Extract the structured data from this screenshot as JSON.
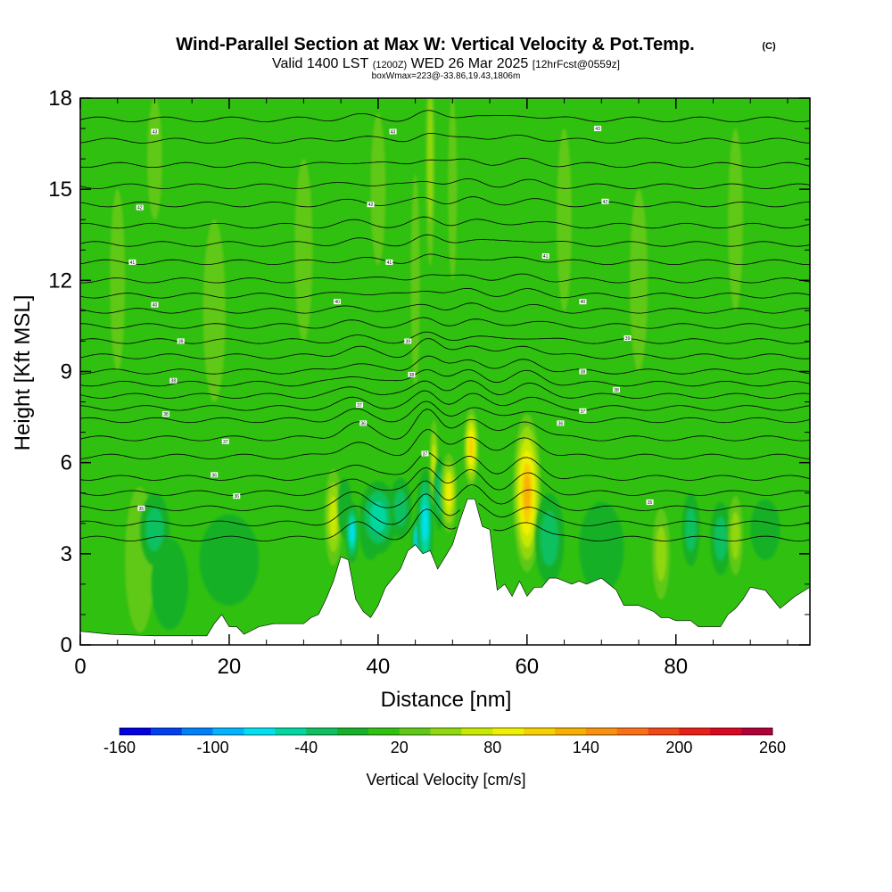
{
  "chart_data": {
    "type": "heatmap",
    "title": "Wind-Parallel Section at Max W: Vertical Velocity & Pot.Temp.",
    "title_mark": "(C)",
    "subtitle": {
      "a": "Valid 1400 LST",
      "b": "(1200Z)",
      "c": "WED 26 Mar 2025",
      "d": "[12hrFcst@0559z]"
    },
    "subtitle2": "boxWmax=223@-33.86,19.43,1806m",
    "xlabel": "Distance [nm]",
    "ylabel": "Height [Kft MSL]",
    "xlim": [
      0,
      98
    ],
    "ylim": [
      0,
      18
    ],
    "xticks": [
      0,
      20,
      40,
      60,
      80
    ],
    "yticks": [
      0,
      3,
      6,
      9,
      12,
      15,
      18
    ],
    "colorbar": {
      "label": "Vertical Velocity [cm/s]",
      "tick_labels": [
        -160,
        -100,
        -40,
        20,
        80,
        140,
        200,
        260
      ],
      "boundaries": [
        -160,
        -140,
        -120,
        -100,
        -80,
        -60,
        -40,
        -20,
        0,
        20,
        40,
        60,
        80,
        100,
        120,
        140,
        160,
        180,
        200,
        220,
        240,
        260
      ],
      "colors": [
        "#0000e0",
        "#0040f0",
        "#0080f8",
        "#00b4ff",
        "#00e0f0",
        "#00d8a0",
        "#10c060",
        "#18b028",
        "#30c010",
        "#60c818",
        "#90d810",
        "#c8e800",
        "#f0f000",
        "#f8d000",
        "#f8b000",
        "#f89010",
        "#f87018",
        "#f04818",
        "#e82018",
        "#d80820",
        "#b00038"
      ]
    },
    "background_w": 15,
    "terrain_kft": [
      [
        0,
        0.45
      ],
      [
        4,
        0.35
      ],
      [
        10,
        0.3
      ],
      [
        17,
        0.3
      ],
      [
        18,
        0.7
      ],
      [
        19,
        1.0
      ],
      [
        20,
        0.6
      ],
      [
        21,
        0.6
      ],
      [
        22,
        0.35
      ],
      [
        24,
        0.6
      ],
      [
        26,
        0.7
      ],
      [
        30,
        0.7
      ],
      [
        31,
        0.9
      ],
      [
        32,
        1.0
      ],
      [
        33,
        1.5
      ],
      [
        34,
        2.1
      ],
      [
        35,
        2.9
      ],
      [
        36,
        2.8
      ],
      [
        37,
        1.5
      ],
      [
        38,
        1.1
      ],
      [
        39,
        0.9
      ],
      [
        40,
        1.3
      ],
      [
        41,
        1.9
      ],
      [
        42,
        2.2
      ],
      [
        43,
        2.5
      ],
      [
        44,
        3.1
      ],
      [
        45,
        3.3
      ],
      [
        46,
        3.0
      ],
      [
        47,
        3.1
      ],
      [
        48,
        2.5
      ],
      [
        49,
        2.9
      ],
      [
        50,
        3.3
      ],
      [
        51,
        4.1
      ],
      [
        52,
        4.8
      ],
      [
        53,
        4.8
      ],
      [
        54,
        3.9
      ],
      [
        55,
        3.8
      ],
      [
        56,
        1.8
      ],
      [
        57,
        2.0
      ],
      [
        58,
        1.6
      ],
      [
        59,
        2.1
      ],
      [
        60,
        1.6
      ],
      [
        61,
        1.9
      ],
      [
        62,
        1.9
      ],
      [
        63,
        2.2
      ],
      [
        64,
        2.2
      ],
      [
        65,
        2.1
      ],
      [
        66,
        2.0
      ],
      [
        67,
        2.1
      ],
      [
        68,
        2.0
      ],
      [
        69,
        2.1
      ],
      [
        70,
        2.2
      ],
      [
        71,
        2.0
      ],
      [
        72,
        1.8
      ],
      [
        73,
        1.3
      ],
      [
        74,
        1.3
      ],
      [
        75,
        1.3
      ],
      [
        76,
        1.2
      ],
      [
        77,
        1.1
      ],
      [
        78,
        0.9
      ],
      [
        79,
        0.9
      ],
      [
        80,
        0.8
      ],
      [
        82,
        0.8
      ],
      [
        83,
        0.6
      ],
      [
        86,
        0.6
      ],
      [
        87,
        1.0
      ],
      [
        88,
        1.2
      ],
      [
        89,
        1.5
      ],
      [
        90,
        1.9
      ],
      [
        92,
        1.8
      ],
      [
        94,
        1.2
      ],
      [
        96,
        1.6
      ],
      [
        98,
        1.9
      ]
    ],
    "w_cells": [
      {
        "x": 8,
        "z": 2.8,
        "w": 85,
        "dx": 1.2,
        "dz": 1.6
      },
      {
        "x": 8,
        "z": 2.8,
        "w": 40,
        "dx": 2.0,
        "dz": 2.4
      },
      {
        "x": 10,
        "z": 3.8,
        "w": -30,
        "dx": 2.0,
        "dz": 1.2
      },
      {
        "x": 12,
        "z": 2.0,
        "w": -15,
        "dx": 2.5,
        "dz": 1.5
      },
      {
        "x": 20,
        "z": 2.8,
        "w": -10,
        "dx": 4.0,
        "dz": 1.5
      },
      {
        "x": 34,
        "z": 4.2,
        "w": 80,
        "dx": 1.2,
        "dz": 1.6
      },
      {
        "x": 35.5,
        "z": 4.5,
        "w": -20,
        "dx": 1.0,
        "dz": 1.0
      },
      {
        "x": 36.5,
        "z": 3.7,
        "w": -80,
        "dx": 0.9,
        "dz": 1.0
      },
      {
        "x": 39,
        "z": 3.8,
        "w": -40,
        "dx": 1.5,
        "dz": 1.0
      },
      {
        "x": 40,
        "z": 4.2,
        "w": -50,
        "dx": 2.5,
        "dz": 1.2
      },
      {
        "x": 43,
        "z": 4.5,
        "w": -35,
        "dx": 1.5,
        "dz": 1.0
      },
      {
        "x": 45.5,
        "z": 3.5,
        "w": -120,
        "dx": 1.0,
        "dz": 0.8
      },
      {
        "x": 46.3,
        "z": 4.0,
        "w": -70,
        "dx": 1.1,
        "dz": 1.8
      },
      {
        "x": 47.5,
        "z": 6.0,
        "w": 70,
        "dx": 0.6,
        "dz": 1.4
      },
      {
        "x": 48.2,
        "z": 5.0,
        "w": -35,
        "dx": 0.8,
        "dz": 1.2
      },
      {
        "x": 49.5,
        "z": 5.0,
        "w": 95,
        "dx": 1.1,
        "dz": 1.3
      },
      {
        "x": 52.5,
        "z": 6.5,
        "w": 110,
        "dx": 1.0,
        "dz": 1.3
      },
      {
        "x": 60,
        "z": 5.0,
        "w": 220,
        "dx": 1.0,
        "dz": 1.6
      },
      {
        "x": 60,
        "z": 5.0,
        "w": 140,
        "dx": 1.9,
        "dz": 2.6
      },
      {
        "x": 63,
        "z": 3.5,
        "w": -25,
        "dx": 2.0,
        "dz": 1.5
      },
      {
        "x": 70,
        "z": 3.2,
        "w": -20,
        "dx": 3.0,
        "dz": 1.5
      },
      {
        "x": 78,
        "z": 3.0,
        "w": 60,
        "dx": 1.2,
        "dz": 1.5
      },
      {
        "x": 82,
        "z": 3.8,
        "w": -35,
        "dx": 1.2,
        "dz": 1.2
      },
      {
        "x": 86,
        "z": 3.5,
        "w": -30,
        "dx": 1.4,
        "dz": 1.2
      },
      {
        "x": 88,
        "z": 3.6,
        "w": 55,
        "dx": 1.0,
        "dz": 1.3
      },
      {
        "x": 92,
        "z": 3.8,
        "w": -20,
        "dx": 2.0,
        "dz": 1.0
      },
      {
        "x": 47,
        "z": 16.0,
        "w": 50,
        "dx": 0.6,
        "dz": 3.5
      },
      {
        "x": 45,
        "z": 12.0,
        "w": 40,
        "dx": 0.6,
        "dz": 3.5
      },
      {
        "x": 50,
        "z": 15.0,
        "w": 40,
        "dx": 0.6,
        "dz": 3.0
      },
      {
        "x": 18,
        "z": 11.0,
        "w": 35,
        "dx": 1.5,
        "dz": 3.0
      },
      {
        "x": 5,
        "z": 12.0,
        "w": 35,
        "dx": 1.0,
        "dz": 3.0
      },
      {
        "x": 40,
        "z": 15.0,
        "w": 35,
        "dx": 1.0,
        "dz": 2.5
      },
      {
        "x": 65,
        "z": 14.0,
        "w": 30,
        "dx": 1.0,
        "dz": 3.0
      },
      {
        "x": 75,
        "z": 12.0,
        "w": 30,
        "dx": 1.2,
        "dz": 3.0
      },
      {
        "x": 88,
        "z": 14.0,
        "w": 30,
        "dx": 1.0,
        "dz": 3.0
      },
      {
        "x": 30,
        "z": 13.0,
        "w": 30,
        "dx": 1.2,
        "dz": 3.0
      },
      {
        "x": 10,
        "z": 16.0,
        "w": 30,
        "dx": 1.0,
        "dz": 2.0
      }
    ],
    "isentrope_heights_kft": [
      3.5,
      4.0,
      4.5,
      5.0,
      5.5,
      6.2,
      6.8,
      7.4,
      7.8,
      8.2,
      8.6,
      9.0,
      9.5,
      10.0,
      10.5,
      11.0,
      11.5,
      12.0,
      12.6,
      13.2,
      13.8,
      14.5,
      15.1,
      15.8,
      16.6,
      17.3
    ],
    "isentrope_labels": [
      {
        "x": 8.2,
        "z": 4.5,
        "text": "35"
      },
      {
        "x": 21,
        "z": 4.9,
        "text": "36"
      },
      {
        "x": 18,
        "z": 5.6,
        "text": "36"
      },
      {
        "x": 19.5,
        "z": 6.7,
        "text": "37"
      },
      {
        "x": 11.5,
        "z": 7.6,
        "text": "38"
      },
      {
        "x": 12.5,
        "z": 8.7,
        "text": "38"
      },
      {
        "x": 13.5,
        "z": 10.0,
        "text": "39"
      },
      {
        "x": 10,
        "z": 11.2,
        "text": "40"
      },
      {
        "x": 7,
        "z": 12.6,
        "text": "41"
      },
      {
        "x": 8,
        "z": 14.4,
        "text": "42"
      },
      {
        "x": 10,
        "z": 16.9,
        "text": "43"
      },
      {
        "x": 38,
        "z": 7.3,
        "text": "36"
      },
      {
        "x": 37.5,
        "z": 7.9,
        "text": "37"
      },
      {
        "x": 44.5,
        "z": 8.9,
        "text": "38"
      },
      {
        "x": 44,
        "z": 10.0,
        "text": "39"
      },
      {
        "x": 34.5,
        "z": 11.3,
        "text": "40"
      },
      {
        "x": 41.5,
        "z": 12.6,
        "text": "41"
      },
      {
        "x": 39,
        "z": 14.5,
        "text": "42"
      },
      {
        "x": 42,
        "z": 16.9,
        "text": "43"
      },
      {
        "x": 46.3,
        "z": 6.3,
        "text": "37"
      },
      {
        "x": 64.5,
        "z": 7.3,
        "text": "36"
      },
      {
        "x": 67.5,
        "z": 7.7,
        "text": "37"
      },
      {
        "x": 72,
        "z": 8.4,
        "text": "38"
      },
      {
        "x": 67.5,
        "z": 9.0,
        "text": "38"
      },
      {
        "x": 73.5,
        "z": 10.1,
        "text": "39"
      },
      {
        "x": 67.5,
        "z": 11.3,
        "text": "40"
      },
      {
        "x": 62.5,
        "z": 12.8,
        "text": "41"
      },
      {
        "x": 70.5,
        "z": 14.6,
        "text": "42"
      },
      {
        "x": 69.5,
        "z": 17.0,
        "text": "43"
      },
      {
        "x": 76.5,
        "z": 4.7,
        "text": "35"
      }
    ]
  }
}
